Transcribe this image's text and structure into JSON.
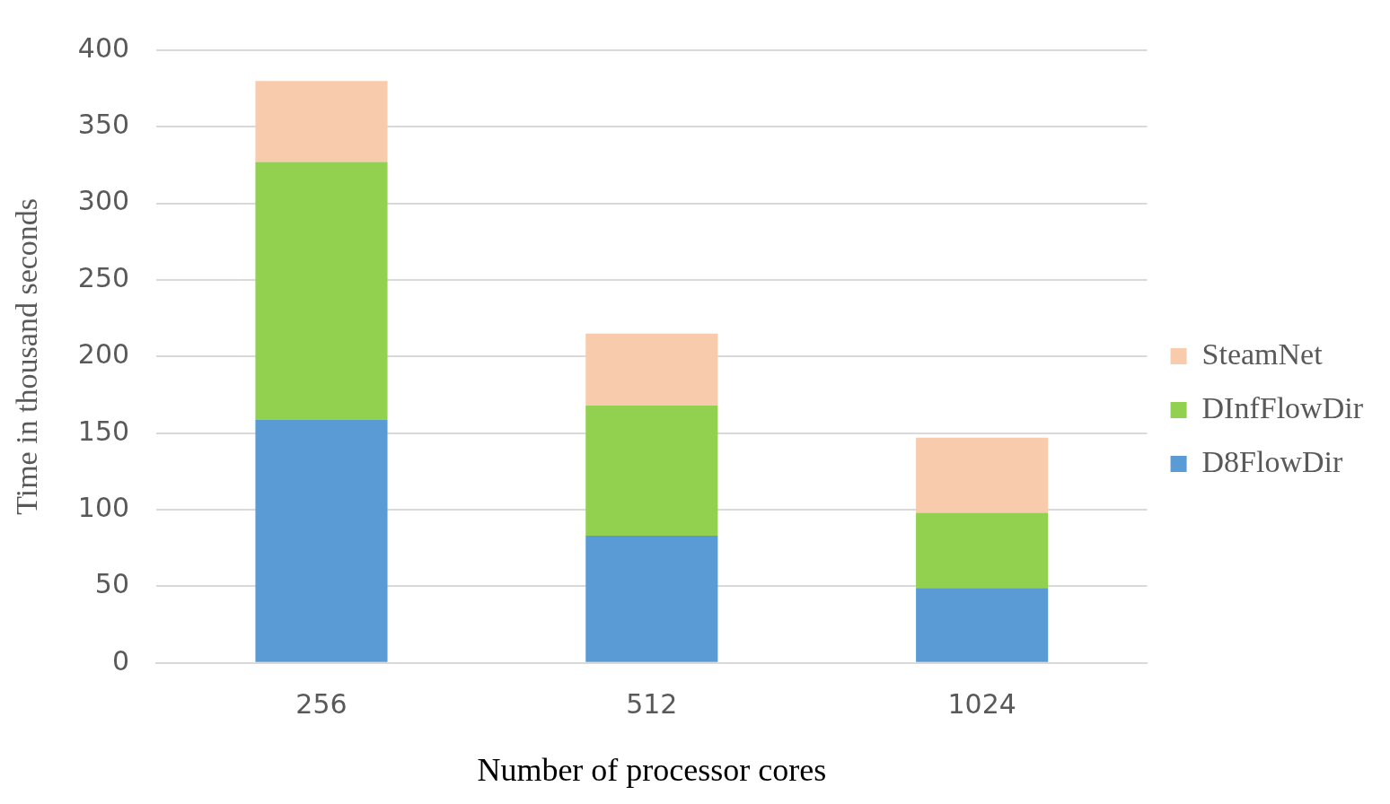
{
  "chart_data": {
    "type": "bar",
    "stacked": true,
    "xlabel": "Number of processor cores",
    "ylabel": "Time in thousand seconds",
    "categories": [
      "256",
      "512",
      "1024"
    ],
    "series": [
      {
        "name": "D8FlowDir",
        "color": "#5b9bd5",
        "values": [
          159,
          83,
          49
        ]
      },
      {
        "name": "DInfFlowDir",
        "color": "#92d050",
        "values": [
          168,
          85,
          49
        ]
      },
      {
        "name": "SteamNet",
        "color": "#f8cbad",
        "values": [
          53,
          47,
          49
        ]
      }
    ],
    "ylim": [
      0,
      400
    ],
    "yticks": [
      0,
      50,
      100,
      150,
      200,
      250,
      300,
      350,
      400
    ],
    "grid": "y",
    "legend": "right"
  }
}
